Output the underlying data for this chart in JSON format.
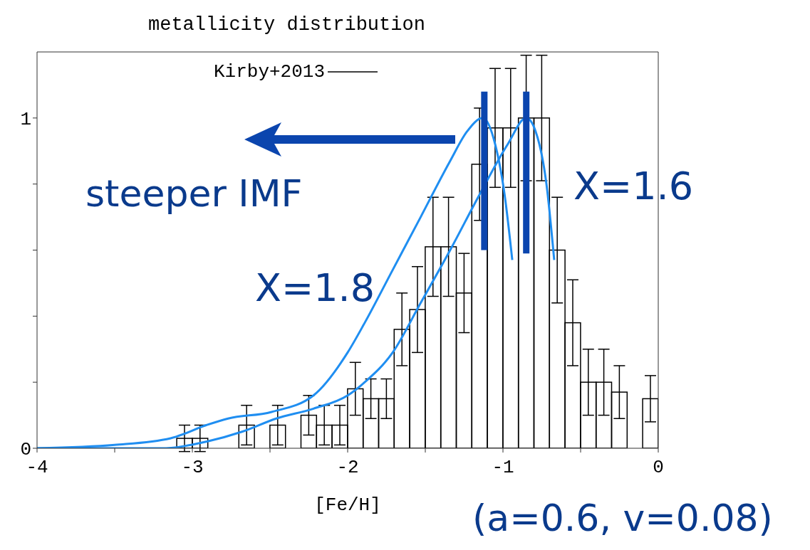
{
  "chart_data": {
    "type": "histogram",
    "title": "metallicity distribution",
    "xlabel": "[Fe/H]",
    "bins": [
      -4,
      -3.9,
      -3.8,
      -3.7,
      -3.6,
      -3.5,
      -3.4,
      -3.3,
      -3.2,
      -3.1,
      -3,
      -2.9,
      -2.8,
      -2.7,
      -2.6,
      -2.5,
      -2.4,
      -2.3,
      -2.2,
      -2.1,
      -2,
      -1.9,
      -1.8,
      -1.7,
      -1.6,
      -1.5,
      -1.4,
      -1.3,
      -1.2,
      -1.1,
      -1,
      -0.9,
      -0.8,
      -0.7,
      -0.6,
      -0.5,
      -0.4,
      -0.3,
      -0.2,
      -0.1,
      0
    ],
    "series": [
      {
        "name": "Kirby+2013",
        "color": "#000000",
        "values": [
          0,
          0,
          0,
          0,
          0,
          0,
          0,
          0,
          0,
          0.03,
          0.03,
          0,
          0,
          0.07,
          0,
          0.07,
          0,
          0.1,
          0.07,
          0.07,
          0.18,
          0.15,
          0.15,
          0.36,
          0.42,
          0.61,
          0.61,
          0.47,
          0.86,
          0.97,
          0.97,
          1,
          1,
          0.6,
          0.38,
          0.2,
          0.2,
          0.17,
          0,
          0.15
        ],
        "errors": [
          null,
          null,
          null,
          null,
          null,
          null,
          null,
          null,
          null,
          0.04,
          0.04,
          null,
          null,
          0.06,
          null,
          0.06,
          null,
          0.06,
          0.06,
          0.06,
          0.08,
          0.06,
          0.06,
          0.11,
          0.13,
          0.15,
          0.15,
          0.12,
          0.17,
          0.18,
          0.18,
          0.19,
          0.19,
          0.16,
          0.13,
          0.1,
          0.1,
          0.08,
          null,
          0.07
        ]
      },
      {
        "name": "X=1.8",
        "type": "line",
        "color": "#1f8ef1",
        "x": [
          -4,
          -3.5,
          -3.14,
          -2.91,
          -2.77,
          -2.49,
          -2.22,
          -2,
          -1.89,
          -1.71,
          -1.53,
          -1.34,
          -1.23,
          -1.13,
          -1.05,
          -0.99,
          -0.94
        ],
        "values": [
          0,
          0.01,
          0.03,
          0.07,
          0.09,
          0.11,
          0.16,
          0.29,
          0.38,
          0.54,
          0.7,
          0.87,
          0.96,
          1,
          0.92,
          0.77,
          0.57
        ]
      },
      {
        "name": "X=1.6",
        "type": "line",
        "color": "#1f8ef1",
        "x": [
          -4,
          -3.2,
          -2.91,
          -2.68,
          -2.46,
          -2.22,
          -2,
          -1.89,
          -1.71,
          -1.53,
          -1.34,
          -1.16,
          -0.97,
          -0.85,
          -0.79,
          -0.72,
          -0.67
        ],
        "values": [
          0,
          0,
          0.02,
          0.05,
          0.09,
          0.12,
          0.16,
          0.2,
          0.29,
          0.44,
          0.6,
          0.76,
          0.92,
          1,
          0.96,
          0.8,
          0.57
        ]
      },
      {
        "type": "line",
        "color": "#0b45ae",
        "x": [
          -1.12,
          -1.12
        ],
        "values": [
          0.6,
          1.08
        ]
      },
      {
        "type": "line",
        "color": "#0b45ae",
        "x": [
          -0.85,
          -0.85
        ],
        "values": [
          0.59,
          1.08
        ]
      }
    ],
    "xlim": [
      -4,
      0
    ],
    "xticks": [
      -4,
      {
        "value": -3.5,
        "label": null
      },
      -3,
      {
        "value": -2.5,
        "label": null
      },
      -2,
      {
        "value": -1.5,
        "label": null
      },
      -1,
      {
        "value": -0.5,
        "label": null
      },
      0
    ],
    "ylim": [
      0,
      1.2
    ],
    "yticks": [
      0,
      {
        "value": 0.2,
        "label": null
      },
      {
        "value": 0.4,
        "label": null
      },
      {
        "value": 0.6,
        "label": null
      },
      {
        "value": 0.8,
        "label": null
      },
      1
    ],
    "legend": "top",
    "annotations": [
      "steeper IMF",
      "(a=0.6, v=0.08)"
    ]
  }
}
